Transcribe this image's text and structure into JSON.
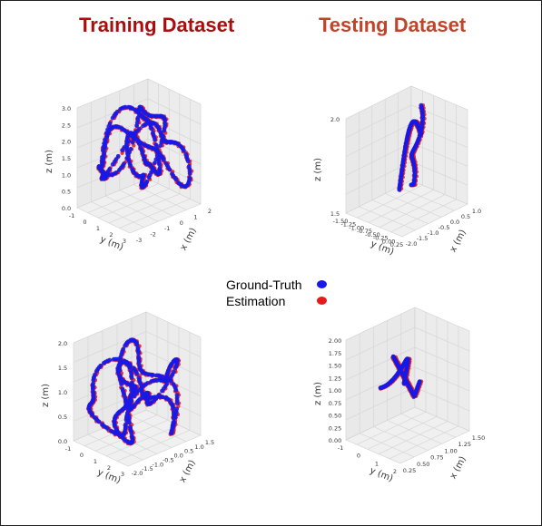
{
  "headers": {
    "training": "Training Dataset",
    "testing": "Testing Dataset"
  },
  "legend": [
    {
      "label": "Ground-Truth",
      "color": "#1a1ae6"
    },
    {
      "label": "Estimation",
      "color": "#e61a1a"
    }
  ],
  "chart_data": [
    {
      "type": "scatter",
      "panel": "training-top",
      "xlabel": "x (m)",
      "ylabel": "y (m)",
      "zlabel": "z (m)",
      "x_ticks": [
        "-3",
        "-2",
        "-1",
        "0",
        "1",
        "2"
      ],
      "y_ticks": [
        "-1",
        "0",
        "1",
        "2",
        "3"
      ],
      "z_ticks": [
        "0.0",
        "0.5",
        "1.0",
        "1.5",
        "2.0",
        "2.5",
        "3.0"
      ],
      "xlim": [
        -3,
        2
      ],
      "ylim": [
        -1.5,
        3
      ],
      "zlim": [
        0,
        3
      ],
      "series": [
        {
          "name": "Ground-Truth"
        },
        {
          "name": "Estimation"
        }
      ]
    },
    {
      "type": "scatter",
      "panel": "testing-top",
      "xlabel": "x (m)",
      "ylabel": "y (m)",
      "zlabel": "z (m)",
      "x_ticks": [
        "-2.0",
        "-1.5",
        "-1.0",
        "-0.5",
        "0.0",
        "0.5",
        "1.0"
      ],
      "y_ticks": [
        "-1.50",
        "-1.25",
        "-1.00",
        "-0.75",
        "-0.50",
        "-0.25",
        "0.00",
        "0.25"
      ],
      "z_ticks": [
        "1.5",
        "2.0"
      ],
      "xlim": [
        -2,
        1
      ],
      "ylim": [
        -1.5,
        0.25
      ],
      "zlim": [
        1.5,
        2.1
      ],
      "series": [
        {
          "name": "Ground-Truth"
        },
        {
          "name": "Estimation"
        }
      ]
    },
    {
      "type": "scatter",
      "panel": "training-bottom",
      "xlabel": "x (m)",
      "ylabel": "y (m)",
      "zlabel": "z (m)",
      "x_ticks": [
        "-2.0",
        "-1.5",
        "-1.0",
        "-0.5",
        "0.0",
        "0.5",
        "1.0",
        "1.5"
      ],
      "y_ticks": [
        "-1",
        "0",
        "1",
        "2",
        "3"
      ],
      "z_ticks": [
        "0.0",
        "0.5",
        "1.0",
        "1.5",
        "2.0"
      ],
      "xlim": [
        -2,
        1.5
      ],
      "ylim": [
        -1.5,
        3
      ],
      "zlim": [
        0,
        2.2
      ],
      "series": [
        {
          "name": "Ground-Truth"
        },
        {
          "name": "Estimation"
        }
      ]
    },
    {
      "type": "scatter",
      "panel": "testing-bottom",
      "xlabel": "x (m)",
      "ylabel": "y (m)",
      "zlabel": "z (m)",
      "x_ticks": [
        "0.25",
        "0.50",
        "0.75",
        "1.00",
        "1.25",
        "1.50"
      ],
      "y_ticks": [
        "-1",
        "0",
        "1",
        "2"
      ],
      "z_ticks": [
        "0.00",
        "0.25",
        "0.50",
        "0.75",
        "1.00",
        "1.25",
        "1.50",
        "1.75",
        "2.00"
      ],
      "xlim": [
        0,
        1.5
      ],
      "ylim": [
        -1.5,
        2.5
      ],
      "zlim": [
        0,
        2
      ],
      "series": [
        {
          "name": "Ground-Truth"
        },
        {
          "name": "Estimation"
        }
      ]
    }
  ]
}
